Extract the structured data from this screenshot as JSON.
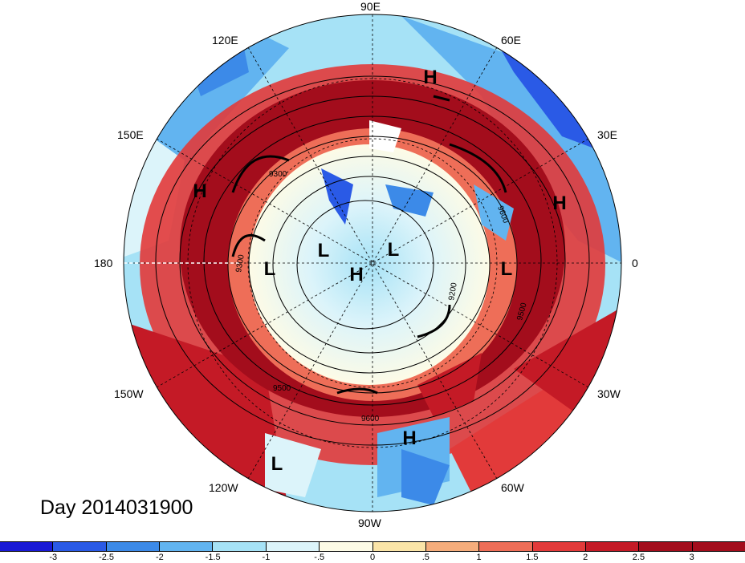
{
  "title": "Day 2014031900",
  "longitude_labels": {
    "e90": "90E",
    "e120": "120E",
    "e60": "60E",
    "e150": "150E",
    "e30": "30E",
    "w180": "180",
    "zero": "0",
    "w150": "150W",
    "w30": "30W",
    "w120": "120W",
    "w60": "60W",
    "w90": "90W"
  },
  "pressure_centers": [
    {
      "label": "H",
      "name": "high-60e"
    },
    {
      "label": "H",
      "name": "high-150e"
    },
    {
      "label": "H",
      "name": "high-30e"
    },
    {
      "label": "L",
      "name": "low-west-1"
    },
    {
      "label": "L",
      "name": "low-center-1"
    },
    {
      "label": "L",
      "name": "low-center-2"
    },
    {
      "label": "H",
      "name": "high-pole"
    },
    {
      "label": "L",
      "name": "low-east"
    },
    {
      "label": "H",
      "name": "high-90w"
    },
    {
      "label": "L",
      "name": "low-120w"
    }
  ],
  "contour_labels": [
    "9300",
    "9600",
    "9300",
    "9200",
    "9500",
    "9500",
    "9600"
  ],
  "colorbar": {
    "labels": [
      "-3",
      "-2.5",
      "-2",
      "-1.5",
      "-1",
      "-.5",
      "0",
      ".5",
      "1",
      "1.5",
      "2",
      "2.5",
      "3"
    ],
    "colors": [
      "#1a1ad6",
      "#2a5ae6",
      "#3c8ae8",
      "#62b4f0",
      "#a6e2f6",
      "#dcf4fa",
      "#fdfbe6",
      "#fbe5a8",
      "#f5ad7c",
      "#ee6e58",
      "#e23a3a",
      "#c41a26",
      "#a30d1c"
    ]
  }
}
